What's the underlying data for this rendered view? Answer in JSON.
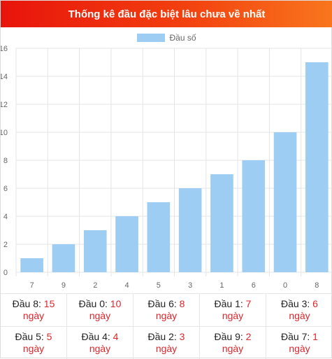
{
  "header": {
    "title": "Thống kê đầu đặc biệt lâu chưa về nhất"
  },
  "colors": {
    "bar": "#9dcdf2",
    "accent": "#e0262b",
    "header_start": "#e8140b",
    "header_end": "#f9761d"
  },
  "chart_data": {
    "type": "bar",
    "title": "",
    "categories": [
      "7",
      "9",
      "2",
      "4",
      "5",
      "3",
      "1",
      "6",
      "0",
      "8"
    ],
    "series": [
      {
        "name": "Đầu số",
        "values": [
          1,
          2,
          3,
          4,
          5,
          6,
          7,
          8,
          10,
          15
        ]
      }
    ],
    "xlabel": "",
    "ylabel": "",
    "ylim": [
      0,
      16
    ],
    "yticks": [
      "0",
      "2",
      "4",
      "6",
      "8",
      "10",
      "12",
      "14",
      "16"
    ],
    "grid": true,
    "legend": "top"
  },
  "stats": [
    {
      "label": "Đầu 8:",
      "value": "15",
      "unit": "ngày"
    },
    {
      "label": "Đầu 0:",
      "value": "10",
      "unit": "ngày"
    },
    {
      "label": "Đầu 6:",
      "value": "8",
      "unit": "ngày"
    },
    {
      "label": "Đầu 1:",
      "value": "7",
      "unit": "ngày"
    },
    {
      "label": "Đầu 3:",
      "value": "6",
      "unit": "ngày"
    },
    {
      "label": "Đầu 5:",
      "value": "5",
      "unit": "ngày"
    },
    {
      "label": "Đầu 4:",
      "value": "4",
      "unit": "ngày"
    },
    {
      "label": "Đầu 2:",
      "value": "3",
      "unit": "ngày"
    },
    {
      "label": "Đầu 9:",
      "value": "2",
      "unit": "ngày"
    },
    {
      "label": "Đầu 7:",
      "value": "1",
      "unit": "ngày"
    }
  ]
}
